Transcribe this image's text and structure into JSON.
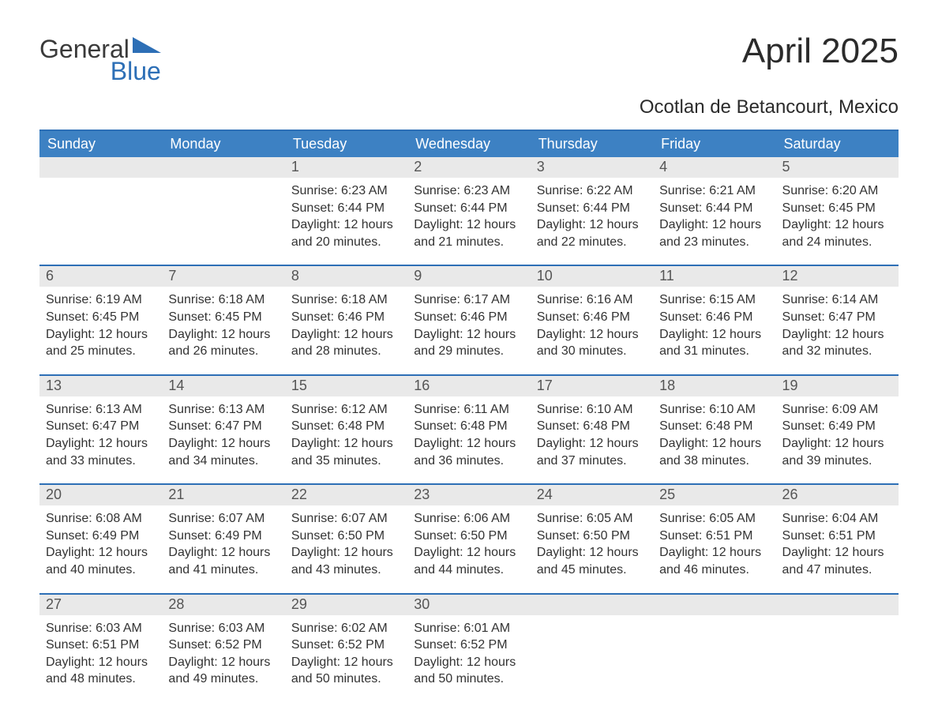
{
  "brand": {
    "line1": "General",
    "line2": "Blue",
    "accent_color": "#2d6fb6"
  },
  "title": "April 2025",
  "location": "Ocotlan de Betancourt, Mexico",
  "colors": {
    "header_bg": "#3d81c3",
    "header_text": "#ffffff",
    "row_rule": "#2d6fb6",
    "daynum_bg": "#e9e9e9",
    "daynum_text": "#555555",
    "body_text": "#333333",
    "page_bg": "#ffffff"
  },
  "typography": {
    "title_fontsize": 44,
    "location_fontsize": 24,
    "header_fontsize": 18,
    "daynum_fontsize": 18,
    "body_fontsize": 16,
    "font_family": "Arial"
  },
  "layout": {
    "columns": 7,
    "rows": 5,
    "blank_leading_cells": 2,
    "blank_trailing_cells": 3
  },
  "day_headers": [
    "Sunday",
    "Monday",
    "Tuesday",
    "Wednesday",
    "Thursday",
    "Friday",
    "Saturday"
  ],
  "sunrise_prefix": "Sunrise: ",
  "sunset_prefix": "Sunset: ",
  "daylight_prefix": "Daylight: ",
  "days": [
    {
      "n": 1,
      "sunrise": "6:23 AM",
      "sunset": "6:44 PM",
      "daylight": "12 hours and 20 minutes."
    },
    {
      "n": 2,
      "sunrise": "6:23 AM",
      "sunset": "6:44 PM",
      "daylight": "12 hours and 21 minutes."
    },
    {
      "n": 3,
      "sunrise": "6:22 AM",
      "sunset": "6:44 PM",
      "daylight": "12 hours and 22 minutes."
    },
    {
      "n": 4,
      "sunrise": "6:21 AM",
      "sunset": "6:44 PM",
      "daylight": "12 hours and 23 minutes."
    },
    {
      "n": 5,
      "sunrise": "6:20 AM",
      "sunset": "6:45 PM",
      "daylight": "12 hours and 24 minutes."
    },
    {
      "n": 6,
      "sunrise": "6:19 AM",
      "sunset": "6:45 PM",
      "daylight": "12 hours and 25 minutes."
    },
    {
      "n": 7,
      "sunrise": "6:18 AM",
      "sunset": "6:45 PM",
      "daylight": "12 hours and 26 minutes."
    },
    {
      "n": 8,
      "sunrise": "6:18 AM",
      "sunset": "6:46 PM",
      "daylight": "12 hours and 28 minutes."
    },
    {
      "n": 9,
      "sunrise": "6:17 AM",
      "sunset": "6:46 PM",
      "daylight": "12 hours and 29 minutes."
    },
    {
      "n": 10,
      "sunrise": "6:16 AM",
      "sunset": "6:46 PM",
      "daylight": "12 hours and 30 minutes."
    },
    {
      "n": 11,
      "sunrise": "6:15 AM",
      "sunset": "6:46 PM",
      "daylight": "12 hours and 31 minutes."
    },
    {
      "n": 12,
      "sunrise": "6:14 AM",
      "sunset": "6:47 PM",
      "daylight": "12 hours and 32 minutes."
    },
    {
      "n": 13,
      "sunrise": "6:13 AM",
      "sunset": "6:47 PM",
      "daylight": "12 hours and 33 minutes."
    },
    {
      "n": 14,
      "sunrise": "6:13 AM",
      "sunset": "6:47 PM",
      "daylight": "12 hours and 34 minutes."
    },
    {
      "n": 15,
      "sunrise": "6:12 AM",
      "sunset": "6:48 PM",
      "daylight": "12 hours and 35 minutes."
    },
    {
      "n": 16,
      "sunrise": "6:11 AM",
      "sunset": "6:48 PM",
      "daylight": "12 hours and 36 minutes."
    },
    {
      "n": 17,
      "sunrise": "6:10 AM",
      "sunset": "6:48 PM",
      "daylight": "12 hours and 37 minutes."
    },
    {
      "n": 18,
      "sunrise": "6:10 AM",
      "sunset": "6:48 PM",
      "daylight": "12 hours and 38 minutes."
    },
    {
      "n": 19,
      "sunrise": "6:09 AM",
      "sunset": "6:49 PM",
      "daylight": "12 hours and 39 minutes."
    },
    {
      "n": 20,
      "sunrise": "6:08 AM",
      "sunset": "6:49 PM",
      "daylight": "12 hours and 40 minutes."
    },
    {
      "n": 21,
      "sunrise": "6:07 AM",
      "sunset": "6:49 PM",
      "daylight": "12 hours and 41 minutes."
    },
    {
      "n": 22,
      "sunrise": "6:07 AM",
      "sunset": "6:50 PM",
      "daylight": "12 hours and 43 minutes."
    },
    {
      "n": 23,
      "sunrise": "6:06 AM",
      "sunset": "6:50 PM",
      "daylight": "12 hours and 44 minutes."
    },
    {
      "n": 24,
      "sunrise": "6:05 AM",
      "sunset": "6:50 PM",
      "daylight": "12 hours and 45 minutes."
    },
    {
      "n": 25,
      "sunrise": "6:05 AM",
      "sunset": "6:51 PM",
      "daylight": "12 hours and 46 minutes."
    },
    {
      "n": 26,
      "sunrise": "6:04 AM",
      "sunset": "6:51 PM",
      "daylight": "12 hours and 47 minutes."
    },
    {
      "n": 27,
      "sunrise": "6:03 AM",
      "sunset": "6:51 PM",
      "daylight": "12 hours and 48 minutes."
    },
    {
      "n": 28,
      "sunrise": "6:03 AM",
      "sunset": "6:52 PM",
      "daylight": "12 hours and 49 minutes."
    },
    {
      "n": 29,
      "sunrise": "6:02 AM",
      "sunset": "6:52 PM",
      "daylight": "12 hours and 50 minutes."
    },
    {
      "n": 30,
      "sunrise": "6:01 AM",
      "sunset": "6:52 PM",
      "daylight": "12 hours and 50 minutes."
    }
  ]
}
